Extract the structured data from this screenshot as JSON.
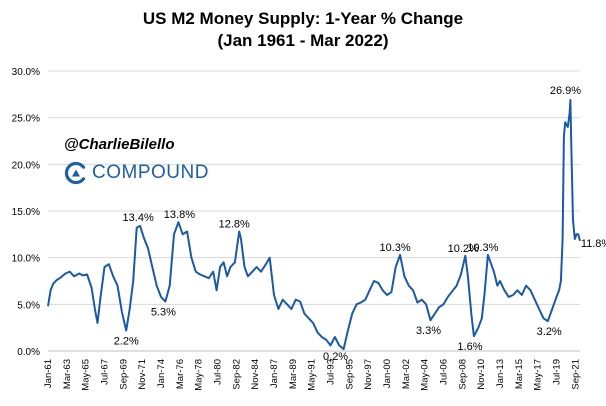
{
  "title_line1": "US M2 Money Supply: 1-Year % Change",
  "title_line2": "(Jan 1961 - Mar 2022)",
  "brand": {
    "handle": "@CharlieBilello",
    "logo_text": "COMPOUND",
    "logo_icon": "compound-logo-icon",
    "accent": "#1d5fa5"
  },
  "chart_data": {
    "type": "line",
    "series": [
      {
        "color": "#1a5aa6",
        "x": [
          1961.0,
          1961.3,
          1961.6,
          1962.0,
          1962.5,
          1963.0,
          1963.5,
          1964.0,
          1964.6,
          1965.0,
          1965.5,
          1966.0,
          1966.4,
          1966.7,
          1967.0,
          1967.5,
          1968.0,
          1968.5,
          1969.0,
          1969.5,
          1970.0,
          1970.4,
          1970.8,
          1971.2,
          1971.6,
          1972.0,
          1972.5,
          1973.0,
          1973.5,
          1974.0,
          1974.5,
          1975.0,
          1975.5,
          1976.0,
          1976.5,
          1977.0,
          1977.5,
          1978.0,
          1978.5,
          1979.0,
          1979.5,
          1980.0,
          1980.4,
          1980.8,
          1981.2,
          1981.6,
          1982.0,
          1982.5,
          1983.0,
          1983.2,
          1983.6,
          1984.0,
          1984.5,
          1985.0,
          1985.5,
          1986.0,
          1986.5,
          1987.0,
          1987.5,
          1988.0,
          1988.5,
          1989.0,
          1989.5,
          1990.0,
          1990.5,
          1991.0,
          1991.5,
          1992.0,
          1992.5,
          1993.0,
          1993.5,
          1994.0,
          1994.5,
          1995.0,
          1995.5,
          1996.0,
          1996.5,
          1997.0,
          1997.5,
          1998.0,
          1998.5,
          1999.0,
          1999.5,
          2000.0,
          2000.5,
          2001.0,
          2001.5,
          2002.0,
          2002.5,
          2003.0,
          2003.5,
          2004.0,
          2004.5,
          2005.0,
          2005.5,
          2006.0,
          2006.5,
          2007.0,
          2007.5,
          2008.0,
          2008.5,
          2009.0,
          2009.3,
          2009.7,
          2010.0,
          2010.5,
          2010.9,
          2011.2,
          2011.6,
          2011.9,
          2012.3,
          2012.7,
          2013.0,
          2013.5,
          2014.0,
          2014.5,
          2015.0,
          2015.5,
          2016.0,
          2016.5,
          2017.0,
          2017.5,
          2018.0,
          2018.5,
          2019.0,
          2019.5,
          2019.8,
          2020.0,
          2020.2,
          2020.35,
          2020.5,
          2020.8,
          2021.0,
          2021.1,
          2021.2,
          2021.4,
          2021.6,
          2021.8,
          2022.0,
          2022.2
        ],
        "y": [
          4.8,
          6.5,
          7.2,
          7.6,
          7.9,
          8.3,
          8.5,
          8.0,
          8.3,
          8.1,
          8.2,
          6.8,
          4.5,
          3.0,
          5.5,
          9.0,
          9.3,
          8.0,
          7.0,
          4.2,
          2.2,
          4.5,
          7.5,
          13.2,
          13.4,
          12.2,
          11.0,
          9.0,
          7.0,
          5.8,
          5.3,
          7.0,
          12.5,
          13.8,
          12.5,
          12.8,
          10.0,
          8.5,
          8.2,
          8.0,
          7.8,
          8.5,
          6.5,
          9.0,
          9.5,
          8.0,
          9.0,
          9.5,
          12.8,
          12.0,
          9.0,
          8.0,
          8.5,
          9.0,
          8.5,
          9.2,
          10.0,
          6.0,
          4.5,
          5.5,
          5.0,
          4.5,
          5.5,
          5.3,
          4.0,
          3.5,
          3.0,
          2.0,
          1.5,
          1.2,
          0.6,
          1.5,
          0.6,
          0.2,
          2.2,
          4.0,
          5.0,
          5.2,
          5.5,
          6.5,
          7.5,
          7.3,
          6.5,
          6.0,
          6.3,
          9.0,
          10.3,
          8.0,
          7.0,
          6.5,
          5.2,
          5.5,
          5.0,
          3.3,
          4.0,
          4.7,
          5.0,
          5.8,
          6.4,
          7.0,
          8.2,
          10.2,
          8.0,
          4.0,
          1.6,
          2.5,
          3.5,
          6.0,
          10.3,
          9.5,
          8.5,
          7.0,
          7.5,
          6.5,
          5.8,
          6.0,
          6.5,
          6.0,
          7.0,
          6.5,
          5.5,
          4.5,
          3.5,
          3.2,
          4.5,
          5.8,
          6.5,
          7.5,
          12.0,
          23.0,
          24.5,
          24.0,
          25.5,
          26.9,
          22.0,
          14.0,
          12.0,
          12.5,
          12.5,
          11.8
        ]
      }
    ],
    "annotations": [
      {
        "text": "2.2%",
        "x": 1970.0,
        "y": 2.2
      },
      {
        "text": "13.4%",
        "x": 1971.6,
        "y": 13.4
      },
      {
        "text": "5.3%",
        "x": 1974.5,
        "y": 5.3
      },
      {
        "text": "13.8%",
        "x": 1976.0,
        "y": 13.8
      },
      {
        "text": "12.8%",
        "x": 1983.0,
        "y": 12.8
      },
      {
        "text": "0.2%",
        "x": 1995.0,
        "y": 0.2
      },
      {
        "text": "10.3%",
        "x": 2001.5,
        "y": 10.3
      },
      {
        "text": "3.3%",
        "x": 2005.0,
        "y": 3.3
      },
      {
        "text": "10.2%",
        "x": 2009.0,
        "y": 10.2
      },
      {
        "text": "1.6%",
        "x": 2010.0,
        "y": 1.6
      },
      {
        "text": "10.3%",
        "x": 2011.6,
        "y": 10.3
      },
      {
        "text": "3.2%",
        "x": 2019.0,
        "y": 3.2
      },
      {
        "text": "26.9%",
        "x": 2021.1,
        "y": 26.9
      },
      {
        "text": "11.8%",
        "x": 2022.2,
        "y": 11.8
      }
    ],
    "yticks": [
      0,
      5,
      10,
      15,
      20,
      25,
      30
    ],
    "ytick_labels": [
      "0.0%",
      "5.0%",
      "10.0%",
      "15.0%",
      "20.0%",
      "25.0%",
      "30.0%"
    ],
    "xticks": [
      {
        "label": "Jan-61",
        "x": 1961.0
      },
      {
        "label": "Mar-63",
        "x": 1963.17
      },
      {
        "label": "May-65",
        "x": 1965.33
      },
      {
        "label": "Jul-67",
        "x": 1967.5
      },
      {
        "label": "Sep-69",
        "x": 1969.67
      },
      {
        "label": "Nov-71",
        "x": 1971.83
      },
      {
        "label": "Jan-74",
        "x": 1974.0
      },
      {
        "label": "Mar-76",
        "x": 1976.17
      },
      {
        "label": "May-78",
        "x": 1978.33
      },
      {
        "label": "Jul-80",
        "x": 1980.5
      },
      {
        "label": "Sep-82",
        "x": 1982.67
      },
      {
        "label": "Nov-84",
        "x": 1984.83
      },
      {
        "label": "Jan-87",
        "x": 1987.0
      },
      {
        "label": "Mar-89",
        "x": 1989.17
      },
      {
        "label": "May-91",
        "x": 1991.33
      },
      {
        "label": "Jul-93",
        "x": 1993.5
      },
      {
        "label": "Sep-95",
        "x": 1995.67
      },
      {
        "label": "Nov-97",
        "x": 1997.83
      },
      {
        "label": "Jan-00",
        "x": 2000.0
      },
      {
        "label": "Mar-02",
        "x": 2002.17
      },
      {
        "label": "May-04",
        "x": 2004.33
      },
      {
        "label": "Jul-06",
        "x": 2006.5
      },
      {
        "label": "Sep-08",
        "x": 2008.67
      },
      {
        "label": "Nov-10",
        "x": 2010.83
      },
      {
        "label": "Jan-13",
        "x": 2013.0
      },
      {
        "label": "Mar-15",
        "x": 2015.17
      },
      {
        "label": "May-17",
        "x": 2017.33
      },
      {
        "label": "Jul-19",
        "x": 2019.5
      },
      {
        "label": "Sep-21",
        "x": 2021.67
      }
    ],
    "xlim": [
      1961.0,
      2022.2
    ],
    "ylim": [
      0,
      30
    ],
    "grid": "horizontal",
    "gridline_color": "#d9d9d9",
    "legend": "none"
  }
}
